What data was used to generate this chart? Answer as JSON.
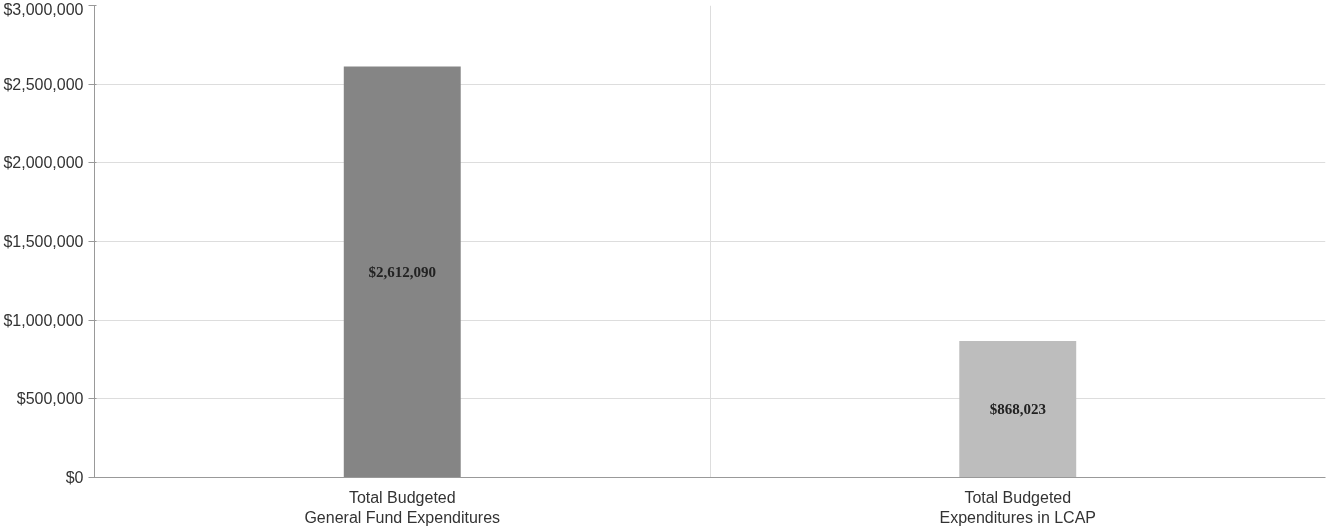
{
  "chart_data": {
    "type": "bar",
    "categories": [
      "Total Budgeted\nGeneral Fund Expenditures",
      "Total Budgeted\nExpenditures in LCAP"
    ],
    "values": [
      2612090,
      868023
    ],
    "colors": [
      "#858585",
      "#bdbdbd"
    ],
    "value_labels": [
      "$2,612,090",
      "$868,023"
    ],
    "ylim": [
      0,
      3000000
    ],
    "yticks": [
      {
        "value": 0,
        "label": "$0"
      },
      {
        "value": 500000,
        "label": "$500,000"
      },
      {
        "value": 1000000,
        "label": "$1,000,000"
      },
      {
        "value": 1500000,
        "label": "$1,500,000"
      },
      {
        "value": 2000000,
        "label": "$2,000,000"
      },
      {
        "value": 2500000,
        "label": "$2,500,000"
      },
      {
        "value": 3000000,
        "label": "$3,000,000"
      }
    ],
    "grid": true
  }
}
